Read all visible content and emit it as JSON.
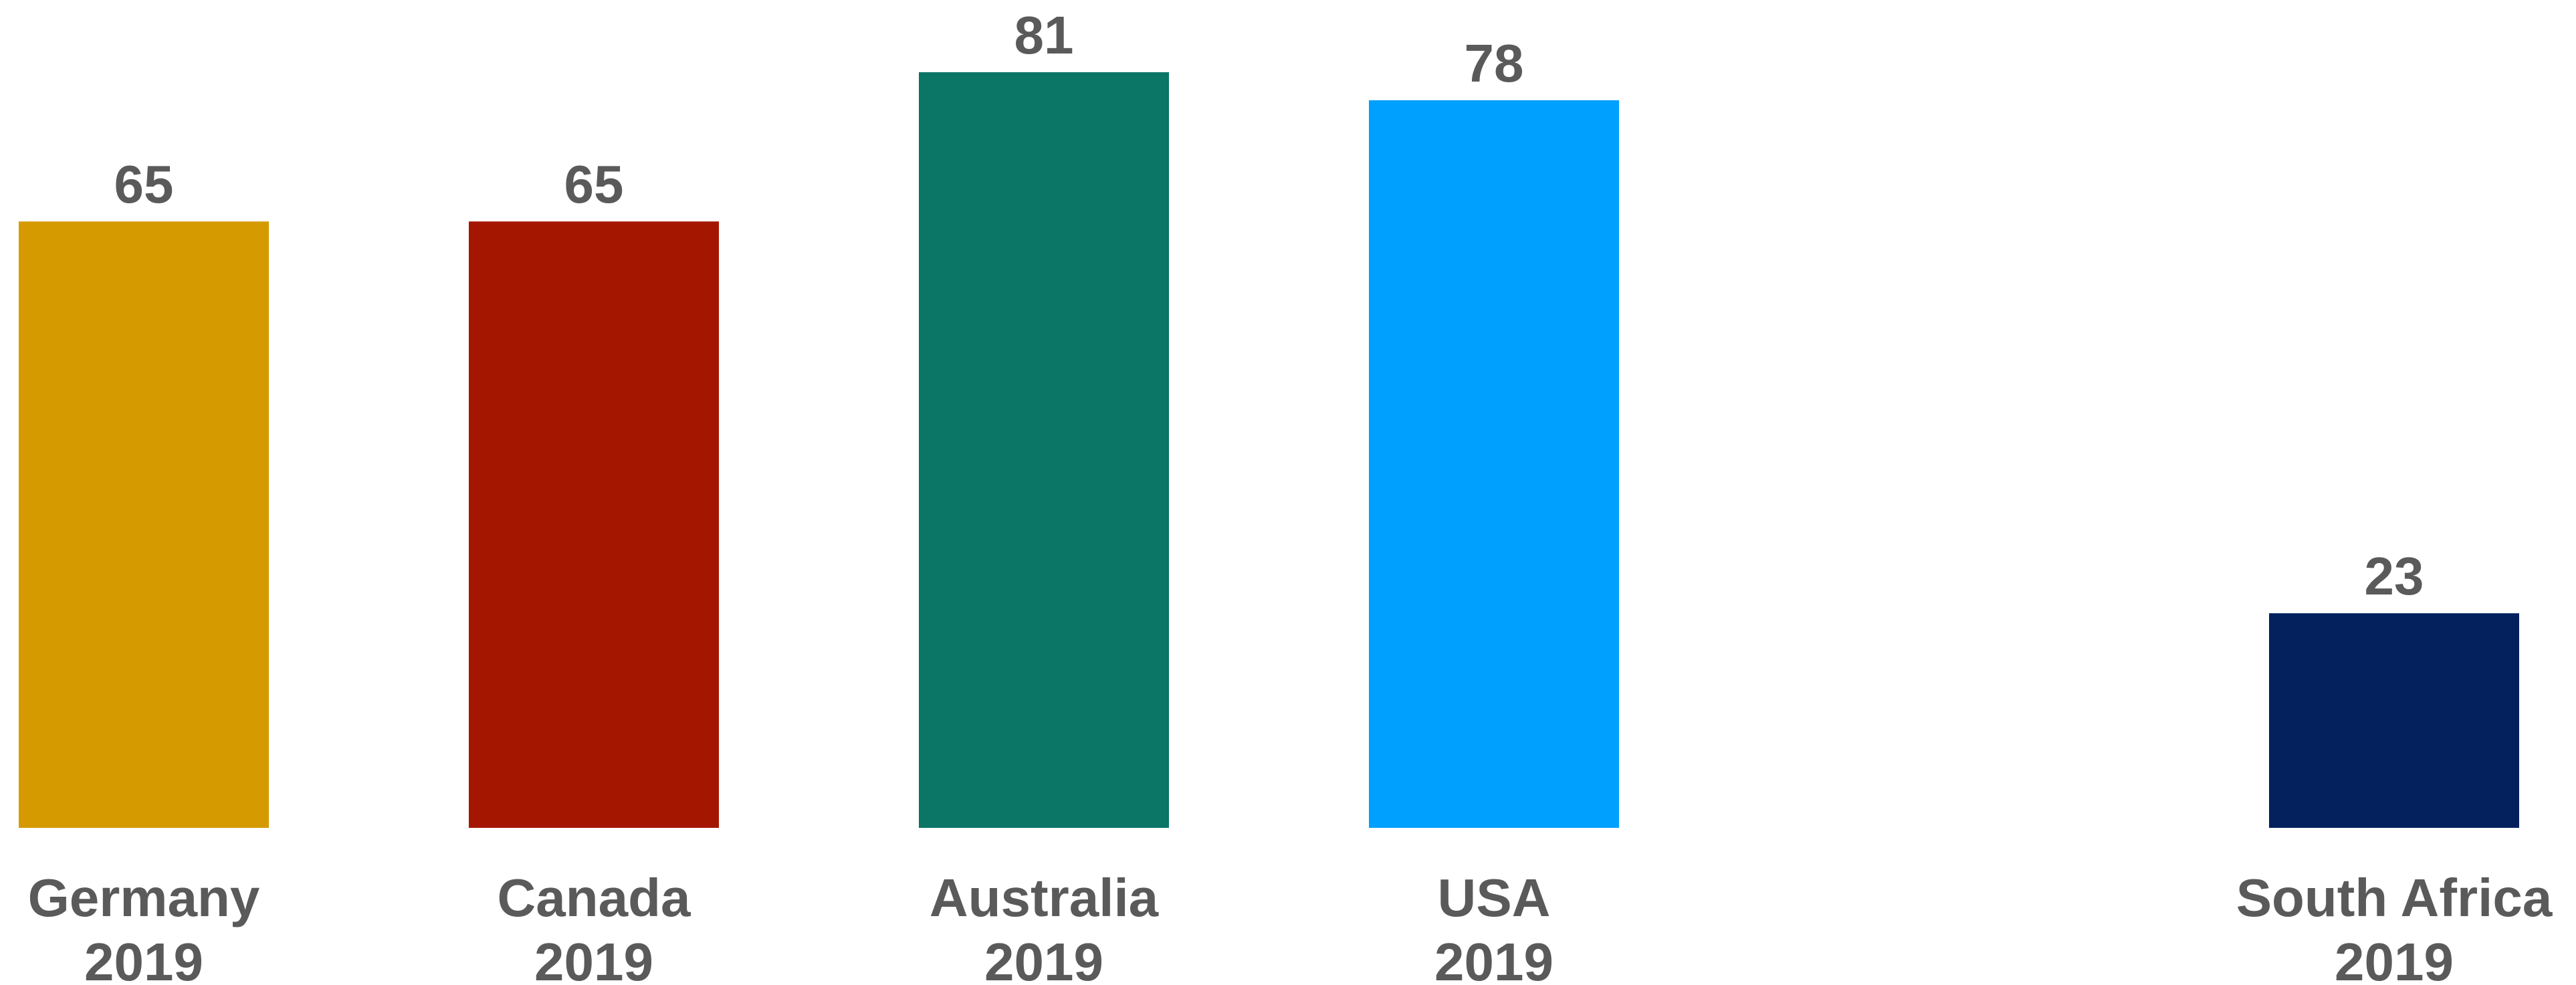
{
  "chart_data": {
    "type": "bar",
    "categories": [
      [
        "Germany",
        "2019"
      ],
      [
        "Canada",
        "2019"
      ],
      [
        "Australia",
        "2019"
      ],
      [
        "USA",
        "2019"
      ],
      [
        "South Africa",
        "2019"
      ]
    ],
    "values": [
      65,
      65,
      81,
      78,
      23
    ],
    "colors": [
      "#d49a00",
      "#a51600",
      "#0b7566",
      "#00a0ff",
      "#04215e"
    ],
    "slots": [
      0,
      1,
      2,
      3,
      5
    ],
    "ylim": [
      0,
      81
    ],
    "grid": false,
    "legend": "none"
  }
}
